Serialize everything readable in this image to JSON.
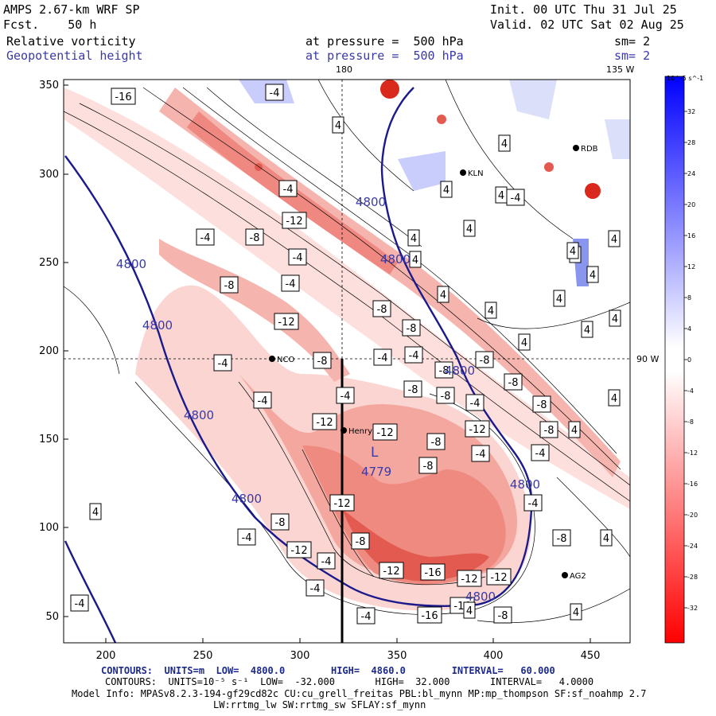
{
  "header": {
    "model_line": "AMPS 2.67-km WRF SP",
    "fcst_line": "Fcst.    50 h",
    "init_line": "Init. 00 UTC Thu 31 Jul 25",
    "valid_line": "Valid. 02 UTC Sat 02 Aug 25",
    "field1_name": "Relative vorticity",
    "field1_level": "at pressure =  500 hPa",
    "field1_sm": "sm= 2",
    "field2_name": "Geopotential height",
    "field2_level": "at pressure =  500 hPa",
    "field2_sm": "sm= 2"
  },
  "map": {
    "top_meridian_labels": [
      "180",
      "135 W"
    ],
    "right_meridian_label": "90 W",
    "x_ticks": [
      "200",
      "250",
      "300",
      "350",
      "400",
      "450"
    ],
    "y_ticks": [
      "350",
      "300",
      "250",
      "200",
      "150",
      "100",
      "50"
    ],
    "stations": [
      "RDB",
      "KLN",
      "NCO",
      "Henry",
      "AG2"
    ],
    "low_center": {
      "symbol": "L",
      "value": "4779"
    },
    "height_labels": [
      "4800",
      "4800",
      "4800",
      "4800",
      "4800",
      "4800",
      "4800",
      "4800"
    ],
    "vorticity_labels": [
      "-16",
      "-4",
      "-4",
      "-4",
      "-8",
      "-8",
      "-4",
      "-12",
      "-4",
      "-12",
      "-8",
      "-12",
      "-4",
      "-8",
      "-4",
      "-8",
      "-4",
      "-8",
      "-8",
      "-8",
      "-12",
      "-8",
      "-8",
      "-12",
      "-8",
      "-12",
      "-12",
      "-16",
      "-12",
      "-12",
      "-16",
      "-16",
      "-8",
      "-8",
      "-8",
      "-8",
      "-4",
      "-8",
      "-4",
      "-4",
      "-4",
      "-4",
      "-4",
      "-8",
      "-4",
      "-4",
      "-4",
      "-4",
      "-8",
      "-4",
      "-12",
      "-4",
      "4",
      "4",
      "4",
      "4",
      "4",
      "4",
      "4",
      "4",
      "4",
      "4",
      "4",
      "4",
      "4",
      "4",
      "4",
      "4",
      "4",
      "4",
      "4",
      "4",
      "4",
      "4",
      "4"
    ]
  },
  "colorbar": {
    "unit": "10^-5 s^-1",
    "ticks": [
      "32",
      "28",
      "24",
      "20",
      "16",
      "12",
      "8",
      "4",
      "0",
      "-4",
      "-8",
      "-12",
      "-16",
      "-20",
      "-24",
      "-28",
      "-32"
    ]
  },
  "footer": {
    "contours1": "CONTOURS:  UNITS=m  LOW=  4800.0        HIGH=  4860.0        INTERVAL=   60.000",
    "contours2": "CONTOURS:  UNITS=10⁻⁵ s⁻¹  LOW=  -32.000       HIGH=  32.000       INTERVAL=   4.0000",
    "model_info": "Model Info: MPASv8.2.3-194-gf29cd82c CU:cu_grell_freitas PBL:bl_mynn MP:mp_thompson SF:sf_noahmp 2.7",
    "model_info2": "LW:rrtmg_lw SW:rrtmg_sw SFLAY:sf_mynn"
  },
  "colors": {
    "positive_max": "#0000ff",
    "negative_max": "#ff0000",
    "height_contour": "#1a1a8c",
    "label_blue": "#3a3aa8"
  }
}
